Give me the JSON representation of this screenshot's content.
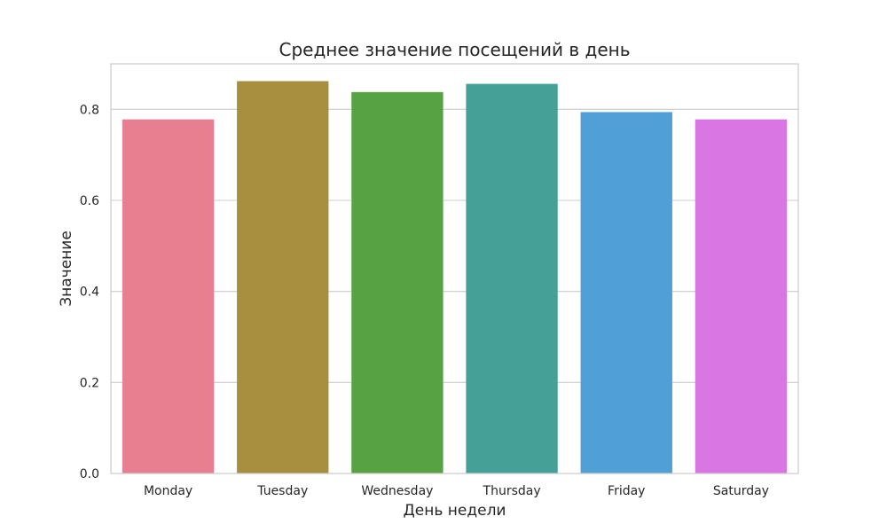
{
  "chart_data": {
    "type": "bar",
    "title": "Среднее значение посещений в день",
    "xlabel": "День недели",
    "ylabel": "Значение",
    "categories": [
      "Monday",
      "Tuesday",
      "Wednesday",
      "Thursday",
      "Friday",
      "Saturday"
    ],
    "values": [
      0.778,
      0.862,
      0.838,
      0.856,
      0.794,
      0.778
    ],
    "colors": [
      "#e77f90",
      "#a88f40",
      "#57a242",
      "#45a098",
      "#509fd6",
      "#d877e4"
    ],
    "ylim": [
      0,
      0.9
    ],
    "yticks": [
      0.0,
      0.2,
      0.4,
      0.6,
      0.8
    ],
    "ytick_labels": [
      "0.0",
      "0.2",
      "0.4",
      "0.6",
      "0.8"
    ],
    "grid": true,
    "legend": false
  }
}
